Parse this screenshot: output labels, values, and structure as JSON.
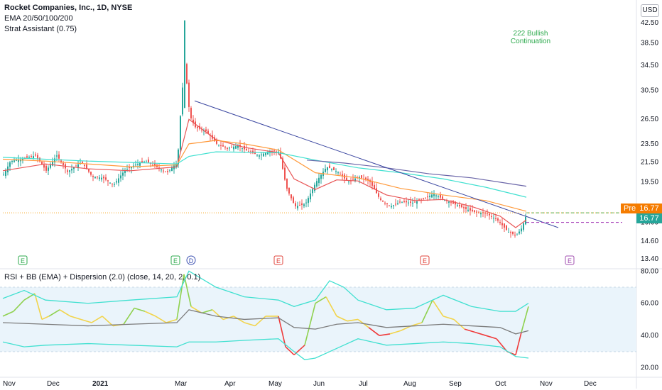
{
  "header": {
    "symbol_title": "Rocket Companies, Inc., 1D, NYSE",
    "indicator_ema": "EMA 20/50/100/200",
    "indicator_strat": "Strat Assistant (0.75)",
    "currency_button": "USD"
  },
  "rsi_panel": {
    "title": "RSI + BB (EMA) + Dispersion (2.0) (close, 14, 20, 2, 0.1)"
  },
  "annotation": {
    "line1": "222 Bullish",
    "line2": "Continuation"
  },
  "badges": {
    "pre_label": "Pre",
    "pre_price": "16.77",
    "last_price": "16.77"
  },
  "events": [
    {
      "label": "E",
      "color": "#2eaa4e"
    },
    {
      "label": "E",
      "color": "#2eaa4e"
    },
    {
      "label": "D",
      "color": "#3a4fb0"
    },
    {
      "label": "E",
      "color": "#e0443c"
    },
    {
      "label": "E",
      "color": "#e0443c"
    },
    {
      "label": "E",
      "color": "#a24fb0"
    }
  ],
  "chart_data": [
    {
      "type": "candlestick",
      "title": "Rocket Companies, Inc., 1D, NYSE",
      "y_axis_ticks": [
        42.5,
        38.5,
        34.5,
        30.5,
        26.5,
        23.5,
        21.5,
        19.5,
        16.0,
        14.6,
        13.4
      ],
      "y_axis_ticks_text": [
        "42.50",
        "38.50",
        "34.50",
        "30.50",
        "26.50",
        "23.50",
        "21.50",
        "19.50",
        "16.00",
        "14.60",
        "13.40"
      ],
      "scale": "log",
      "ylim": [
        12.8,
        47.5
      ],
      "x_ticks": [
        "Nov",
        "Dec",
        "2021",
        "Mar",
        "Apr",
        "May",
        "Jun",
        "Jul",
        "Aug",
        "Sep",
        "Oct",
        "Nov",
        "Dec"
      ],
      "last_price": 16.77,
      "close_series": [
        {
          "t": 0,
          "v": 20.2
        },
        {
          "t": 10,
          "v": 21.6
        },
        {
          "t": 25,
          "v": 21.8
        },
        {
          "t": 45,
          "v": 22.2
        },
        {
          "t": 60,
          "v": 20.6
        },
        {
          "t": 75,
          "v": 22.2
        },
        {
          "t": 90,
          "v": 20.5
        },
        {
          "t": 110,
          "v": 21.5
        },
        {
          "t": 125,
          "v": 20.0
        },
        {
          "t": 140,
          "v": 19.9
        },
        {
          "t": 155,
          "v": 19.2
        },
        {
          "t": 170,
          "v": 20.6
        },
        {
          "t": 185,
          "v": 21.2
        },
        {
          "t": 200,
          "v": 21.6
        },
        {
          "t": 215,
          "v": 21.0
        },
        {
          "t": 230,
          "v": 20.4
        },
        {
          "t": 245,
          "v": 21.5
        },
        {
          "t": 255,
          "v": 35.0
        },
        {
          "t": 262,
          "v": 27.0
        },
        {
          "t": 270,
          "v": 25.5
        },
        {
          "t": 285,
          "v": 25.0
        },
        {
          "t": 300,
          "v": 23.5
        },
        {
          "t": 315,
          "v": 23.0
        },
        {
          "t": 330,
          "v": 23.3
        },
        {
          "t": 345,
          "v": 22.6
        },
        {
          "t": 360,
          "v": 22.2
        },
        {
          "t": 375,
          "v": 22.7
        },
        {
          "t": 388,
          "v": 22.6
        },
        {
          "t": 398,
          "v": 19.0
        },
        {
          "t": 410,
          "v": 17.3
        },
        {
          "t": 425,
          "v": 17.5
        },
        {
          "t": 440,
          "v": 19.5
        },
        {
          "t": 455,
          "v": 21.0
        },
        {
          "t": 470,
          "v": 20.5
        },
        {
          "t": 485,
          "v": 19.5
        },
        {
          "t": 500,
          "v": 20.0
        },
        {
          "t": 515,
          "v": 19.6
        },
        {
          "t": 530,
          "v": 17.9
        },
        {
          "t": 545,
          "v": 17.3
        },
        {
          "t": 560,
          "v": 17.7
        },
        {
          "t": 575,
          "v": 17.6
        },
        {
          "t": 590,
          "v": 17.9
        },
        {
          "t": 605,
          "v": 18.4
        },
        {
          "t": 620,
          "v": 17.9
        },
        {
          "t": 635,
          "v": 17.5
        },
        {
          "t": 650,
          "v": 17.1
        },
        {
          "t": 665,
          "v": 16.8
        },
        {
          "t": 680,
          "v": 16.7
        },
        {
          "t": 695,
          "v": 16.2
        },
        {
          "t": 710,
          "v": 15.3
        },
        {
          "t": 722,
          "v": 15.0
        },
        {
          "t": 730,
          "v": 15.6
        },
        {
          "t": 737,
          "v": 16.77
        }
      ],
      "ema_series": [
        {
          "name": "EMA 20",
          "color": "#e85454",
          "points": [
            [
              0,
              20.6
            ],
            [
              60,
              21.3
            ],
            [
              120,
              20.8
            ],
            [
              180,
              20.6
            ],
            [
              245,
              21.0
            ],
            [
              262,
              26.5
            ],
            [
              300,
              24.0
            ],
            [
              340,
              23.1
            ],
            [
              388,
              22.5
            ],
            [
              410,
              19.8
            ],
            [
              440,
              18.8
            ],
            [
              470,
              19.7
            ],
            [
              500,
              19.6
            ],
            [
              540,
              18.3
            ],
            [
              580,
              17.8
            ],
            [
              620,
              17.9
            ],
            [
              660,
              17.3
            ],
            [
              700,
              16.5
            ],
            [
              722,
              15.6
            ],
            [
              737,
              16.2
            ]
          ]
        },
        {
          "name": "EMA 50",
          "color": "#ff9a3c",
          "points": [
            [
              0,
              21.8
            ],
            [
              60,
              21.6
            ],
            [
              120,
              21.3
            ],
            [
              180,
              21.0
            ],
            [
              245,
              21.2
            ],
            [
              262,
              23.5
            ],
            [
              300,
              23.9
            ],
            [
              340,
              23.5
            ],
            [
              388,
              22.8
            ],
            [
              440,
              20.4
            ],
            [
              500,
              19.9
            ],
            [
              560,
              18.9
            ],
            [
              620,
              18.3
            ],
            [
              680,
              17.8
            ],
            [
              737,
              16.9
            ]
          ]
        },
        {
          "name": "EMA 100",
          "color": "#40e0d0",
          "points": [
            [
              0,
              22.0
            ],
            [
              120,
              21.6
            ],
            [
              245,
              21.3
            ],
            [
              262,
              22.1
            ],
            [
              300,
              22.6
            ],
            [
              388,
              22.5
            ],
            [
              440,
              21.7
            ],
            [
              500,
              20.9
            ],
            [
              560,
              20.4
            ],
            [
              620,
              19.8
            ],
            [
              680,
              19.0
            ],
            [
              737,
              18.1
            ]
          ]
        },
        {
          "name": "EMA 200",
          "color": "#6a65a8",
          "points": [
            [
              428,
              21.7
            ],
            [
              480,
              21.4
            ],
            [
              540,
              20.9
            ],
            [
              600,
              20.3
            ],
            [
              660,
              19.9
            ],
            [
              737,
              19.1
            ]
          ]
        }
      ],
      "trendlines": [
        {
          "color": "#3a46a0",
          "from": [
            270,
            29.0
          ],
          "to": [
            782,
            15.6
          ]
        },
        {
          "color": "#2eaa4e",
          "dashed": true,
          "from": [
            737,
            16.77
          ],
          "to": [
            876,
            16.77
          ]
        },
        {
          "color": "#9c27b0",
          "dashed": true,
          "from": [
            737,
            16.0
          ],
          "to": [
            876,
            16.0
          ]
        },
        {
          "color": "#f5a623",
          "dotted": true,
          "from": [
            0,
            16.77
          ],
          "to": [
            876,
            16.77
          ]
        }
      ]
    },
    {
      "type": "line",
      "title": "RSI + BB (EMA) + Dispersion (2.0) (close, 14, 20, 2, 0.1)",
      "y_axis_ticks": [
        80.0,
        60.0,
        40.0,
        20.0
      ],
      "y_axis_ticks_text": [
        "80.00",
        "60.00",
        "40.00",
        "20.00"
      ],
      "ylim": [
        15,
        81
      ],
      "bands": {
        "upper": 70,
        "lower": 30
      },
      "series": [
        {
          "name": "RSI",
          "values": [
            [
              0,
              52
            ],
            [
              15,
              55
            ],
            [
              30,
              62
            ],
            [
              45,
              66
            ],
            [
              55,
              50
            ],
            [
              65,
              52
            ],
            [
              80,
              56
            ],
            [
              95,
              52
            ],
            [
              110,
              50
            ],
            [
              125,
              48
            ],
            [
              140,
              52
            ],
            [
              155,
              46
            ],
            [
              170,
              47
            ],
            [
              185,
              57
            ],
            [
              200,
              55
            ],
            [
              215,
              52
            ],
            [
              230,
              48
            ],
            [
              245,
              50
            ],
            [
              255,
              78
            ],
            [
              265,
              58
            ],
            [
              280,
              54
            ],
            [
              295,
              56
            ],
            [
              310,
              50
            ],
            [
              325,
              52
            ],
            [
              340,
              48
            ],
            [
              355,
              46
            ],
            [
              370,
              52
            ],
            [
              388,
              52
            ],
            [
              398,
              33
            ],
            [
              410,
              28
            ],
            [
              425,
              34
            ],
            [
              440,
              60
            ],
            [
              455,
              64
            ],
            [
              470,
              52
            ],
            [
              485,
              49
            ],
            [
              500,
              50
            ],
            [
              515,
              45
            ],
            [
              530,
              40
            ],
            [
              545,
              41
            ],
            [
              560,
              43
            ],
            [
              575,
              46
            ],
            [
              590,
              48
            ],
            [
              605,
              62
            ],
            [
              620,
              52
            ],
            [
              635,
              50
            ],
            [
              650,
              44
            ],
            [
              665,
              42
            ],
            [
              680,
              40
            ],
            [
              695,
              38
            ],
            [
              710,
              30
            ],
            [
              722,
              28
            ],
            [
              730,
              42
            ],
            [
              740,
              58
            ]
          ]
        },
        {
          "name": "Basis",
          "color": "#7c7c7c",
          "values": [
            [
              0,
              48
            ],
            [
              60,
              47
            ],
            [
              120,
              46
            ],
            [
              180,
              47
            ],
            [
              245,
              48
            ],
            [
              262,
              56
            ],
            [
              300,
              52
            ],
            [
              340,
              50
            ],
            [
              388,
              51
            ],
            [
              410,
              45
            ],
            [
              440,
              44
            ],
            [
              470,
              47
            ],
            [
              500,
              48
            ],
            [
              540,
              45
            ],
            [
              580,
              46
            ],
            [
              620,
              47
            ],
            [
              660,
              46
            ],
            [
              700,
              45
            ],
            [
              722,
              41
            ],
            [
              740,
              43
            ]
          ]
        },
        {
          "name": "Upper",
          "color": "#40e0d0",
          "values": [
            [
              0,
              63
            ],
            [
              30,
              68
            ],
            [
              60,
              62
            ],
            [
              120,
              60
            ],
            [
              180,
              62
            ],
            [
              245,
              64
            ],
            [
              262,
              80
            ],
            [
              300,
              70
            ],
            [
              340,
              64
            ],
            [
              388,
              62
            ],
            [
              410,
              58
            ],
            [
              440,
              62
            ],
            [
              460,
              74
            ],
            [
              480,
              70
            ],
            [
              500,
              62
            ],
            [
              540,
              56
            ],
            [
              580,
              57
            ],
            [
              620,
              65
            ],
            [
              660,
              58
            ],
            [
              700,
              55
            ],
            [
              722,
              55
            ],
            [
              740,
              60
            ]
          ]
        },
        {
          "name": "Lower",
          "color": "#40e0d0",
          "values": [
            [
              0,
              36
            ],
            [
              30,
              33
            ],
            [
              60,
              34
            ],
            [
              120,
              35
            ],
            [
              180,
              34
            ],
            [
              245,
              33
            ],
            [
              262,
              36
            ],
            [
              300,
              36
            ],
            [
              340,
              37
            ],
            [
              388,
              38
            ],
            [
              410,
              30
            ],
            [
              425,
              25
            ],
            [
              440,
              26
            ],
            [
              460,
              30
            ],
            [
              480,
              34
            ],
            [
              500,
              38
            ],
            [
              540,
              34
            ],
            [
              580,
              35
            ],
            [
              620,
              36
            ],
            [
              660,
              35
            ],
            [
              700,
              33
            ],
            [
              722,
              27
            ],
            [
              740,
              26
            ]
          ]
        }
      ]
    }
  ]
}
